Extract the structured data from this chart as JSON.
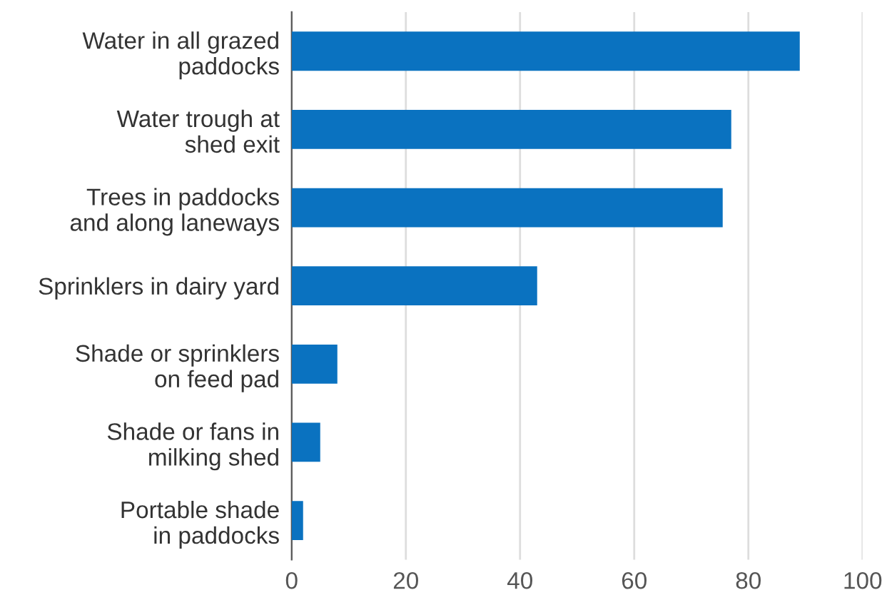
{
  "chart_data": {
    "type": "bar",
    "orientation": "horizontal",
    "categories": [
      "Water in all grazed\npaddocks",
      "Water trough at\nshed exit",
      "Trees in paddocks\nand along laneways",
      "Sprinklers in dairy yard",
      "Shade or sprinklers\non feed pad",
      "Shade or fans in\nmilking shed",
      "Portable shade\nin paddocks"
    ],
    "values": [
      89,
      77,
      75.5,
      43,
      8,
      5,
      2
    ],
    "color": "#0a72c0",
    "xlim": [
      0,
      100
    ],
    "xticks": [
      0,
      20,
      40,
      60,
      80,
      100
    ],
    "grid": "x"
  }
}
